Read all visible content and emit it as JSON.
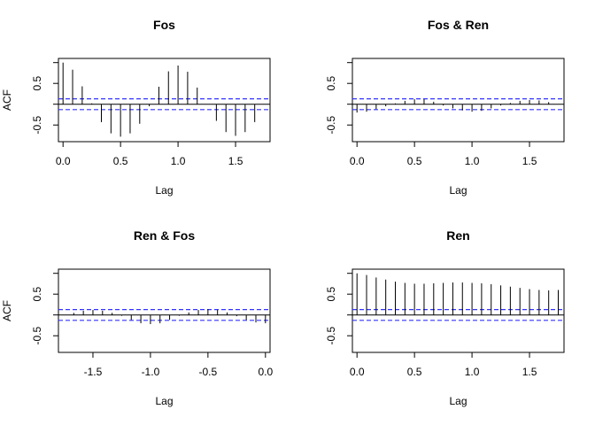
{
  "colors": {
    "ci": "#3333ff",
    "spike": "#000000"
  },
  "chart_data": [
    {
      "type": "bar",
      "subtype": "acf-spikes",
      "title": "Fos",
      "xlabel": "Lag",
      "ylabel": "ACF",
      "xlim": [
        -0.04,
        1.8
      ],
      "ylim": [
        -0.9,
        1.1
      ],
      "xticks": [
        0.0,
        0.5,
        1.0,
        1.5
      ],
      "xtick_labels": [
        "0.0",
        "0.5",
        "1.0",
        "1.5"
      ],
      "yticks": [
        -0.5,
        0.5
      ],
      "ytick_labels": [
        "-0.5",
        "0.5"
      ],
      "ci": 0.13,
      "x": [
        0.0,
        0.0833,
        0.1667,
        0.25,
        0.3333,
        0.4167,
        0.5,
        0.5833,
        0.6667,
        0.75,
        0.8333,
        0.9167,
        1.0,
        1.0833,
        1.1667,
        1.25,
        1.3333,
        1.4167,
        1.5,
        1.5833,
        1.6667
      ],
      "values": [
        1.0,
        0.83,
        0.43,
        0.02,
        -0.43,
        -0.7,
        -0.78,
        -0.7,
        -0.47,
        -0.05,
        0.42,
        0.79,
        0.93,
        0.78,
        0.4,
        0.0,
        -0.4,
        -0.67,
        -0.76,
        -0.67,
        -0.43
      ]
    },
    {
      "type": "bar",
      "subtype": "acf-spikes",
      "title": "Fos & Ren",
      "xlabel": "Lag",
      "ylabel": "",
      "xlim": [
        -0.04,
        1.8
      ],
      "ylim": [
        -0.9,
        1.1
      ],
      "xticks": [
        0.0,
        0.5,
        1.0,
        1.5
      ],
      "xtick_labels": [
        "0.0",
        "0.5",
        "1.0",
        "1.5"
      ],
      "yticks": [
        -0.5,
        0.5
      ],
      "ytick_labels": [
        "-0.5",
        "0.5"
      ],
      "ci": 0.13,
      "x": [
        0.0,
        0.0833,
        0.1667,
        0.25,
        0.3333,
        0.4167,
        0.5,
        0.5833,
        0.6667,
        0.75,
        0.8333,
        0.9167,
        1.0,
        1.0833,
        1.1667,
        1.25,
        1.3333,
        1.4167,
        1.5,
        1.5833,
        1.6667
      ],
      "values": [
        -0.2,
        -0.18,
        -0.12,
        -0.05,
        0.02,
        0.08,
        0.12,
        0.12,
        0.06,
        -0.03,
        -0.1,
        -0.15,
        -0.18,
        -0.16,
        -0.1,
        -0.03,
        0.03,
        0.08,
        0.1,
        0.09,
        0.05
      ]
    },
    {
      "type": "bar",
      "subtype": "acf-spikes",
      "title": "Ren & Fos",
      "xlabel": "Lag",
      "ylabel": "ACF",
      "xlim": [
        -1.8,
        0.04
      ],
      "ylim": [
        -0.9,
        1.1
      ],
      "xticks": [
        -1.5,
        -1.0,
        -0.5,
        0.0
      ],
      "xtick_labels": [
        "-1.5",
        "-1.0",
        "-0.5",
        "0.0"
      ],
      "yticks": [
        -0.5,
        0.5
      ],
      "ytick_labels": [
        "-0.5",
        "0.5"
      ],
      "ci": 0.13,
      "x": [
        -1.6667,
        -1.5833,
        -1.5,
        -1.4167,
        -1.3333,
        -1.25,
        -1.1667,
        -1.0833,
        -1.0,
        -0.9167,
        -0.8333,
        -0.75,
        -0.6667,
        -0.5833,
        -0.5,
        -0.4167,
        -0.3333,
        -0.25,
        -0.1667,
        -0.0833,
        0.0
      ],
      "values": [
        0.05,
        0.1,
        0.12,
        0.1,
        0.05,
        -0.02,
        -0.12,
        -0.2,
        -0.22,
        -0.2,
        -0.12,
        -0.02,
        0.06,
        0.12,
        0.14,
        0.12,
        0.06,
        -0.03,
        -0.12,
        -0.18,
        -0.2
      ]
    },
    {
      "type": "bar",
      "subtype": "acf-spikes",
      "title": "Ren",
      "xlabel": "Lag",
      "ylabel": "",
      "xlim": [
        -0.04,
        1.8
      ],
      "ylim": [
        -0.9,
        1.1
      ],
      "xticks": [
        0.0,
        0.5,
        1.0,
        1.5
      ],
      "xtick_labels": [
        "0.0",
        "0.5",
        "1.0",
        "1.5"
      ],
      "yticks": [
        -0.5,
        0.5
      ],
      "ytick_labels": [
        "-0.5",
        "0.5"
      ],
      "ci": 0.13,
      "x": [
        0.0,
        0.0833,
        0.1667,
        0.25,
        0.3333,
        0.4167,
        0.5,
        0.5833,
        0.6667,
        0.75,
        0.8333,
        0.9167,
        1.0,
        1.0833,
        1.1667,
        1.25,
        1.3333,
        1.4167,
        1.5,
        1.5833,
        1.6667,
        1.75
      ],
      "values": [
        1.0,
        0.96,
        0.9,
        0.85,
        0.8,
        0.77,
        0.75,
        0.75,
        0.76,
        0.77,
        0.78,
        0.78,
        0.77,
        0.76,
        0.74,
        0.71,
        0.68,
        0.65,
        0.62,
        0.6,
        0.59,
        0.6
      ]
    }
  ]
}
